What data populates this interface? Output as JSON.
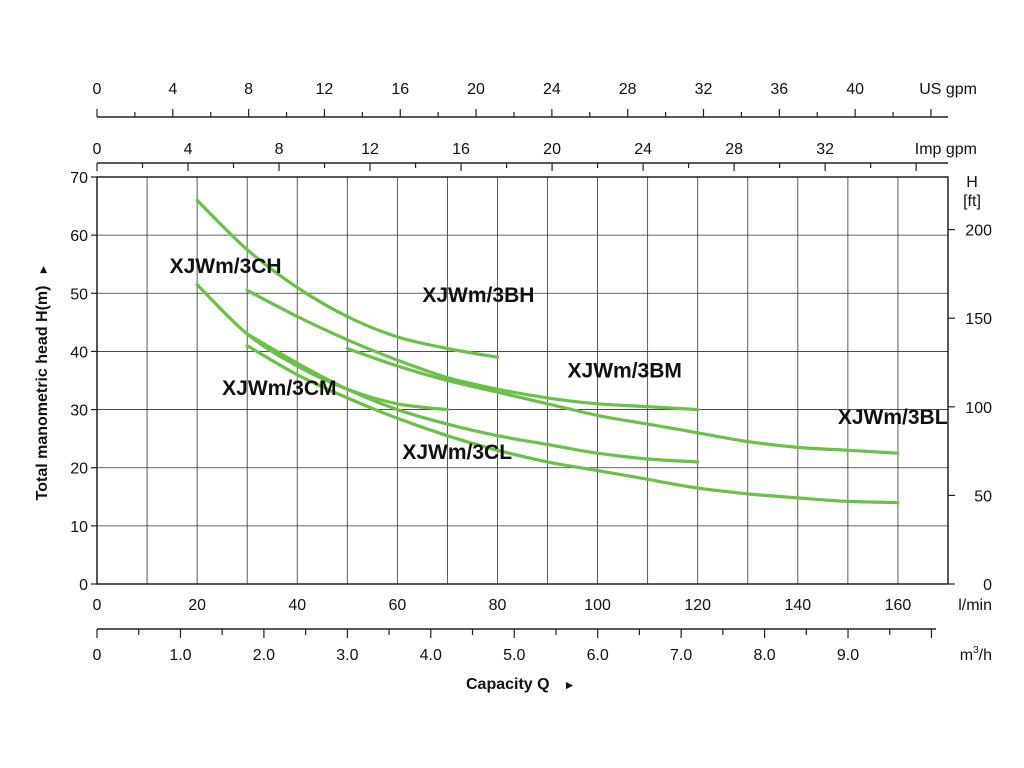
{
  "chart_data": {
    "type": "line",
    "title": "",
    "xlabel": "Capacity Q",
    "xlabel_arrow": "►",
    "ylabel": "Total manometric head H(m)",
    "ylabel_arrow": "►",
    "x_primary": {
      "unit": "l/min",
      "range": [
        0,
        170
      ],
      "ticks": [
        0,
        20,
        40,
        60,
        80,
        100,
        120,
        140,
        160
      ],
      "grid_step": 10
    },
    "x_m3h": {
      "unit_base": "m",
      "unit_sup": "3",
      "unit_tail": "/h",
      "range": [
        0,
        10.0
      ],
      "ticks": [
        "0",
        "1.0",
        "2.0",
        "3.0",
        "4.0",
        "5.0",
        "6.0",
        "7.0",
        "8.0",
        "9.0"
      ],
      "minor_step": 0.5
    },
    "x_us_gpm": {
      "unit": "US gpm",
      "range": [
        0,
        44.9
      ],
      "ticks": [
        0,
        4,
        8,
        12,
        16,
        20,
        24,
        28,
        32,
        36,
        40
      ]
    },
    "x_imp_gpm": {
      "unit": "Imp gpm",
      "range": [
        0,
        37.4
      ],
      "ticks": [
        0,
        4,
        8,
        12,
        16,
        20,
        24,
        28,
        32
      ]
    },
    "y_left": {
      "unit": "m",
      "range": [
        0,
        70
      ],
      "ticks": [
        0,
        10,
        20,
        30,
        40,
        50,
        60,
        70
      ]
    },
    "y_right": {
      "unit_line1": "H",
      "unit_line2": "[ft]",
      "range": [
        0,
        229.7
      ],
      "ticks": [
        0,
        50,
        100,
        150,
        200
      ]
    },
    "grid": true,
    "curve_color": "#6cc04a",
    "series": [
      {
        "name": "XJWm/3CH",
        "x": [
          20,
          30,
          40,
          50,
          60,
          70,
          80
        ],
        "y": [
          66,
          57.5,
          51,
          46,
          42.5,
          40.5,
          39
        ]
      },
      {
        "name": "XJWm/3BH",
        "x": [
          30,
          40,
          50,
          60,
          70,
          80,
          90,
          100,
          110,
          120
        ],
        "y": [
          50.5,
          46,
          42,
          38.5,
          35.5,
          33.5,
          32,
          31,
          30.5,
          30
        ]
      },
      {
        "name": "XJWm/3BM",
        "x": [
          50,
          60,
          70,
          80,
          90,
          100,
          110,
          120,
          130,
          140,
          150,
          160
        ],
        "y": [
          40.5,
          37.5,
          35,
          33,
          31,
          29,
          27.5,
          26,
          24.5,
          23.5,
          23,
          22.5
        ]
      },
      {
        "name": "XJWm/3CM",
        "x": [
          20,
          30,
          40,
          50,
          60,
          70
        ],
        "y": [
          51.5,
          43,
          37.5,
          33.5,
          31,
          30
        ]
      },
      {
        "name": "XJWm/3BL",
        "x": [
          30,
          40,
          50,
          60,
          70,
          80,
          90,
          100,
          110,
          120
        ],
        "y": [
          43,
          38,
          33.5,
          30,
          27.5,
          25.5,
          24,
          22.5,
          21.5,
          21
        ]
      },
      {
        "name": "XJWm/3CL",
        "x": [
          30,
          40,
          50,
          60,
          70,
          80,
          90,
          100,
          110,
          120,
          130,
          140,
          150,
          160
        ],
        "y": [
          41,
          36,
          32,
          28.5,
          25.5,
          23,
          21,
          19.5,
          18,
          16.5,
          15.5,
          14.8,
          14.2,
          14
        ]
      }
    ],
    "labels": [
      {
        "text": "XJWm/3CH",
        "anchor_x": 14.5,
        "anchor_y": 53.5
      },
      {
        "text": "XJWm/3BH",
        "anchor_x": 65,
        "anchor_y": 48.5
      },
      {
        "text": "XJWm/3BM",
        "anchor_x": 94,
        "anchor_y": 35.5
      },
      {
        "text": "XJWm/3CM",
        "anchor_x": 25,
        "anchor_y": 32.5
      },
      {
        "text": "XJWm/3BL",
        "anchor_x": 148,
        "anchor_y": 27.5
      },
      {
        "text": "XJWm/3CL",
        "anchor_x": 61,
        "anchor_y": 21.5
      }
    ]
  }
}
